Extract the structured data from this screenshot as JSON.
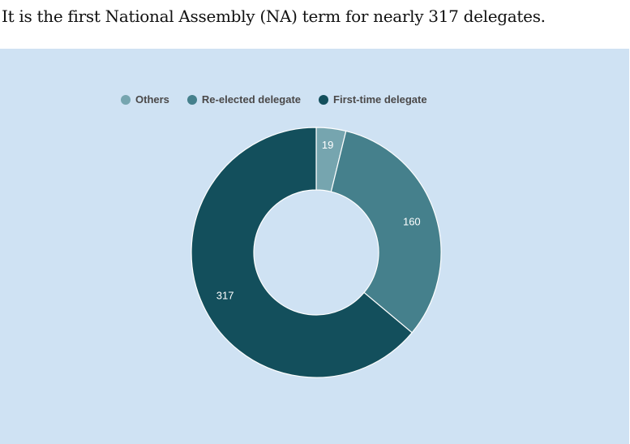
{
  "title": "It is the first National Assembly (NA) term for nearly 317 delegates.",
  "chart_data": {
    "type": "pie",
    "donut": true,
    "legend_position": "top",
    "series": [
      {
        "name": "Others",
        "value": 19,
        "color": "#76a5af"
      },
      {
        "name": "Re-elected delegate",
        "value": 160,
        "color": "#45808c"
      },
      {
        "name": "First-time delegate",
        "value": 317,
        "color": "#134f5c"
      }
    ]
  }
}
